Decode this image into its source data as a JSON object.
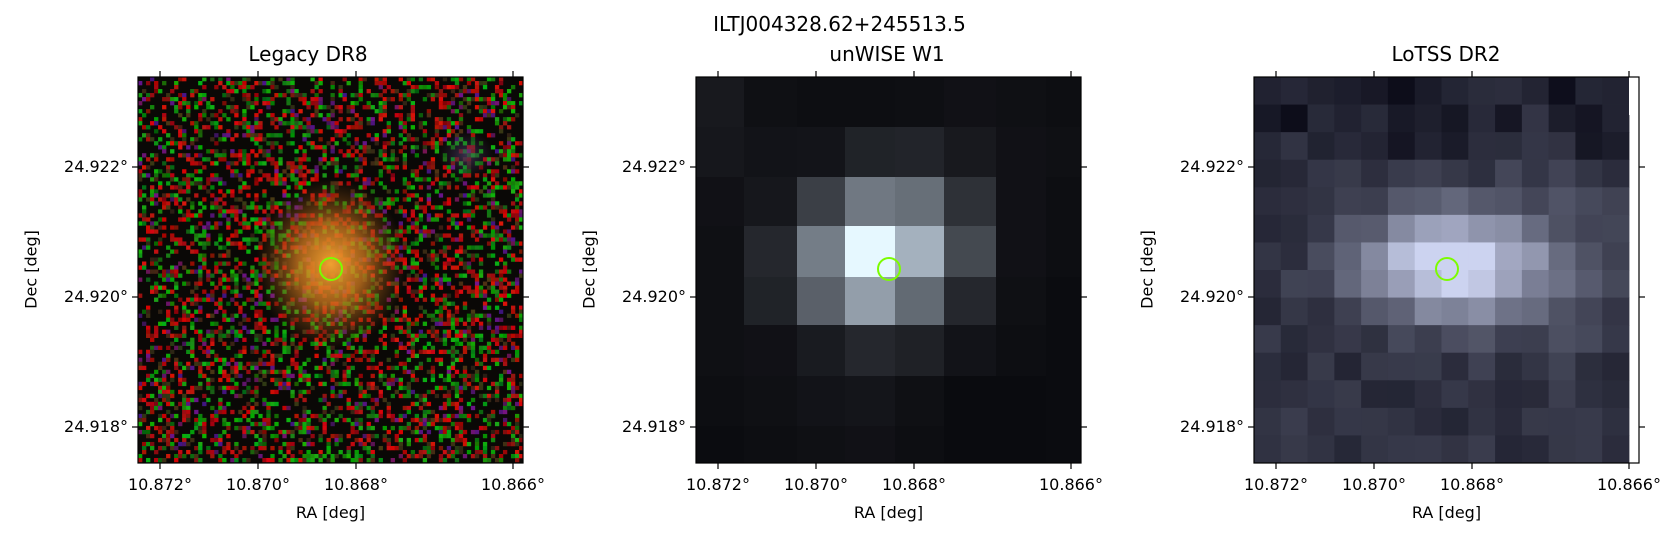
{
  "figure": {
    "title": "ILTJ004328.62+245513.5"
  },
  "panels": [
    {
      "title": "Legacy DR8",
      "xlabel": "RA [deg]",
      "ylabel": "Dec [deg]",
      "xticks": [
        "10.872°",
        "10.870°",
        "10.868°",
        "10.866°"
      ],
      "yticks": [
        "24.922°",
        "24.920°",
        "24.918°"
      ],
      "image": "optical color cutout, orange galaxy at center on noisy red/green background"
    },
    {
      "title": "unWISE W1",
      "xlabel": "RA [deg]",
      "ylabel": "Dec [deg]",
      "xticks": [
        "10.872°",
        "10.870°",
        "10.868°",
        "10.866°"
      ],
      "yticks": [
        "24.922°",
        "24.920°",
        "24.918°"
      ],
      "image": "pixelated grayscale infrared cutout, bright source at center"
    },
    {
      "title": "LoTSS DR2",
      "xlabel": "RA [deg]",
      "ylabel": "Dec [deg]",
      "xticks": [
        "10.872°",
        "10.870°",
        "10.868°",
        "10.866°"
      ],
      "yticks": [
        "24.922°",
        "24.920°",
        "24.918°"
      ],
      "image": "pixelated bluish-gray radio cutout, bright extended source at center"
    }
  ],
  "marker": {
    "shape": "circle",
    "color": "#7cfc00"
  }
}
